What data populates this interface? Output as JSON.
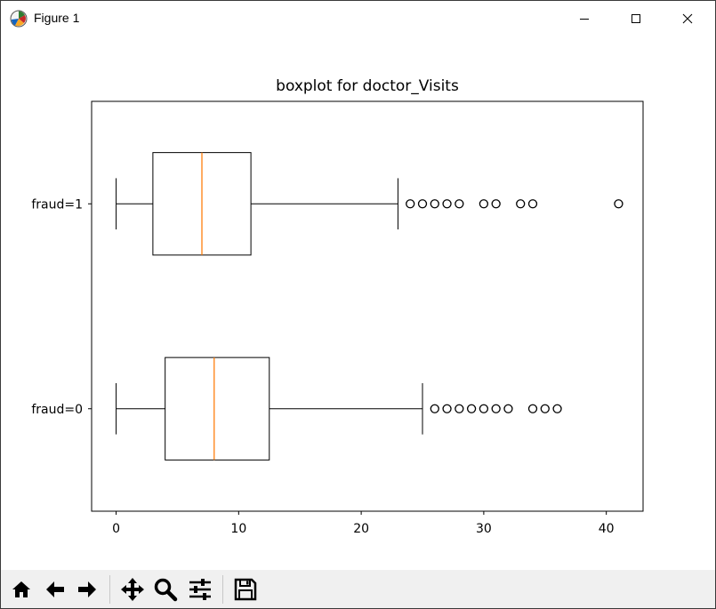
{
  "window": {
    "title": "Figure 1",
    "icon": "matplotlib-logo-icon",
    "controls": [
      "minimize-icon",
      "maximize-icon",
      "close-icon"
    ]
  },
  "toolbar": {
    "buttons": [
      "home-icon",
      "back-arrow-icon",
      "forward-arrow-icon",
      "pan-icon",
      "zoom-icon",
      "configure-subplots-icon",
      "save-icon"
    ]
  },
  "chart_data": {
    "type": "boxplot",
    "orientation": "horizontal",
    "title": "boxplot for doctor_Visits",
    "xlabel": "",
    "ylabel": "",
    "xlim": [
      -2,
      43
    ],
    "xticks": [
      0,
      10,
      20,
      30,
      40
    ],
    "categories": [
      "fraud=0",
      "fraud=1"
    ],
    "boxes": [
      {
        "label": "fraud=0",
        "whisker_low": 0,
        "q1": 4,
        "median": 8,
        "q3": 12.5,
        "whisker_high": 25,
        "outliers": [
          26,
          27,
          28,
          29,
          30,
          31,
          32,
          34,
          35,
          36
        ]
      },
      {
        "label": "fraud=1",
        "whisker_low": 0,
        "q1": 3,
        "median": 7,
        "q3": 11,
        "whisker_high": 23,
        "outliers": [
          24,
          25,
          26,
          27,
          28,
          30,
          31,
          33,
          34,
          41
        ]
      }
    ],
    "colors": {
      "box": "#000000",
      "median": "#ff7f0e",
      "outlier": "#000000"
    },
    "grid": false,
    "legend": "none"
  }
}
